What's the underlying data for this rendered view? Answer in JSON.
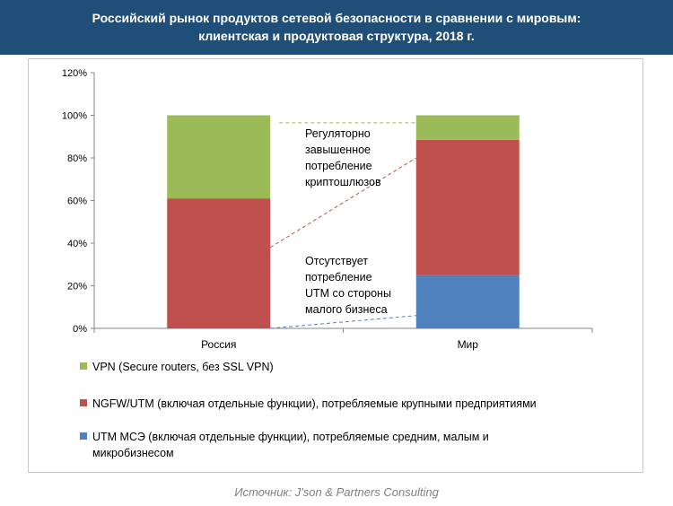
{
  "header": {
    "title_line1": "Российский рынок продуктов сетевой безопасности в сравнении с мировым:",
    "title_line2": "клиентская и продуктовая структура, 2018 г."
  },
  "colors": {
    "header_bg": "#1f4e79",
    "vpn": "#9bbb59",
    "ngfw": "#c0504d",
    "utm": "#4f81bd"
  },
  "chart_data": {
    "type": "bar",
    "stacked": true,
    "categories": [
      "Россия",
      "Мир"
    ],
    "series": [
      {
        "name": "UTM МСЭ (включая отдельные функции), потребляемые средним, малым и микробизнесом",
        "color": "#4f81bd",
        "values": [
          0,
          25
        ]
      },
      {
        "name": "NGFW/UTM (включая отдельные функции), потребляемые крупными предприятиями",
        "color": "#c0504d",
        "values": [
          61,
          63.5
        ]
      },
      {
        "name": "VPN  (Secure routers, без SSL VPN)",
        "color": "#9bbb59",
        "values": [
          39,
          11.5
        ]
      }
    ],
    "ylim": [
      0,
      120
    ],
    "yticks": [
      "0%",
      "20%",
      "40%",
      "60%",
      "80%",
      "100%",
      "120%"
    ],
    "legend_position": "bottom",
    "annotations": [
      "Регуляторно\nзавышенное\nпотребление\nкриптошлюзов",
      "Отсутствует\nпотребление\nUTM со стороны\nмалого бизнеса"
    ]
  },
  "legend": [
    {
      "text": "VPN  (Secure routers, без SSL VPN)",
      "color": "#9bbb59"
    },
    {
      "text": "NGFW/UTM (включая отдельные функции), потребляемые крупными предприятиями",
      "color": "#c0504d"
    },
    {
      "text": "UTM МСЭ (включая отдельные функции), потребляемые средним, малым и\nмикробизнесом",
      "color": "#4f81bd"
    }
  ],
  "source": "Источник: J'son & Partners Consulting"
}
